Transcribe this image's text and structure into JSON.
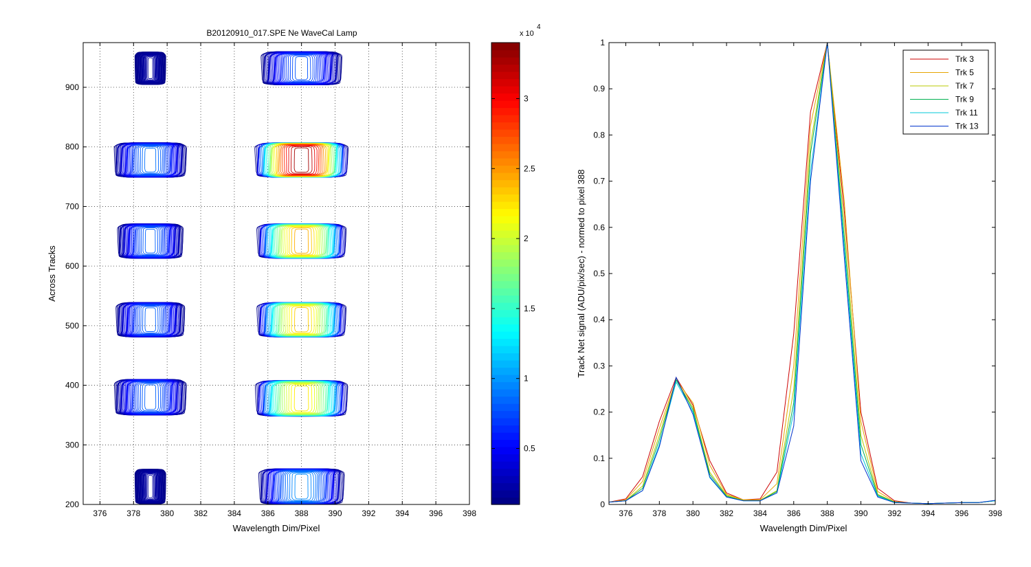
{
  "chart_data": [
    {
      "type": "contour",
      "title": "B20120910_017.SPE  Ne WaveCal Lamp",
      "xlabel": "Wavelength Dim/Pixel",
      "ylabel": "Across Tracks",
      "xlim": [
        375,
        398
      ],
      "ylim": [
        200,
        975
      ],
      "xticks": [
        376,
        378,
        380,
        382,
        384,
        386,
        388,
        390,
        392,
        394,
        396,
        398
      ],
      "yticks": [
        200,
        300,
        400,
        500,
        600,
        700,
        800,
        900
      ],
      "grid": true,
      "colormap": "jet",
      "colorbar": {
        "range": [
          1000,
          34000
        ],
        "ticks": [
          {
            "value": 5000,
            "label": "0.5"
          },
          {
            "value": 10000,
            "label": "1"
          },
          {
            "value": 15000,
            "label": "1.5"
          },
          {
            "value": 20000,
            "label": "2"
          },
          {
            "value": 25000,
            "label": "2.5"
          },
          {
            "value": 30000,
            "label": "3"
          }
        ],
        "multiplier_label": "x 10",
        "multiplier_exponent": "4"
      },
      "contour_levels": [
        1000,
        34000
      ],
      "blobs": [
        {
          "x_center": 379,
          "y_center": 230,
          "x_halfwidth": 1.4,
          "y_halfwidth": 30,
          "peak": 2200
        },
        {
          "x_center": 379,
          "y_center": 380,
          "x_halfwidth": 2.3,
          "y_halfwidth": 30,
          "peak": 8500
        },
        {
          "x_center": 379,
          "y_center": 510,
          "x_halfwidth": 2.2,
          "y_halfwidth": 29,
          "peak": 8500
        },
        {
          "x_center": 379,
          "y_center": 642,
          "x_halfwidth": 2.1,
          "y_halfwidth": 29,
          "peak": 8500
        },
        {
          "x_center": 379,
          "y_center": 778,
          "x_halfwidth": 2.3,
          "y_halfwidth": 29,
          "peak": 9000
        },
        {
          "x_center": 379,
          "y_center": 932,
          "x_halfwidth": 1.4,
          "y_halfwidth": 28,
          "peak": 2200
        },
        {
          "x_center": 388,
          "y_center": 230,
          "x_halfwidth": 2.7,
          "y_halfwidth": 30,
          "peak": 10000
        },
        {
          "x_center": 388,
          "y_center": 378,
          "x_halfwidth": 2.8,
          "y_halfwidth": 30,
          "peak": 23000
        },
        {
          "x_center": 388,
          "y_center": 510,
          "x_halfwidth": 2.7,
          "y_halfwidth": 29,
          "peak": 24000
        },
        {
          "x_center": 388,
          "y_center": 642,
          "x_halfwidth": 2.7,
          "y_halfwidth": 29,
          "peak": 25000
        },
        {
          "x_center": 388,
          "y_center": 778,
          "x_halfwidth": 2.8,
          "y_halfwidth": 29,
          "peak": 34000
        },
        {
          "x_center": 388,
          "y_center": 932,
          "x_halfwidth": 2.6,
          "y_halfwidth": 28,
          "peak": 8000
        }
      ]
    },
    {
      "type": "line",
      "xlabel": "Wavelength Dim/Pixel",
      "ylabel": "Track Net signal (ADU/pix/sec) - normed to pixel 388",
      "xlim": [
        375,
        398
      ],
      "ylim": [
        0,
        1
      ],
      "xticks": [
        376,
        378,
        380,
        382,
        384,
        386,
        388,
        390,
        392,
        394,
        396,
        398
      ],
      "yticks": [
        0,
        0.1,
        0.2,
        0.3,
        0.4,
        0.5,
        0.6,
        0.7,
        0.8,
        0.9,
        1
      ],
      "grid": false,
      "legend_position": "top-right",
      "x": [
        375,
        376,
        377,
        378,
        379,
        380,
        381,
        382,
        383,
        384,
        385,
        386,
        387,
        388,
        389,
        390,
        391,
        392,
        393,
        394,
        395,
        396,
        397,
        398
      ],
      "series": [
        {
          "name": "Trk 3",
          "color": "#cc0000",
          "values": [
            0.005,
            0.012,
            0.06,
            0.18,
            0.275,
            0.215,
            0.095,
            0.025,
            0.01,
            0.012,
            0.07,
            0.37,
            0.85,
            1.0,
            0.64,
            0.2,
            0.035,
            0.008,
            0.003,
            0.002,
            0.003,
            0.004,
            0.004,
            0.008
          ]
        },
        {
          "name": "Trk 5",
          "color": "#e6a400",
          "values": [
            0.005,
            0.01,
            0.05,
            0.165,
            0.27,
            0.22,
            0.085,
            0.022,
            0.01,
            0.01,
            0.045,
            0.3,
            0.82,
            1.0,
            0.66,
            0.18,
            0.028,
            0.006,
            0.003,
            0.002,
            0.003,
            0.004,
            0.004,
            0.008
          ]
        },
        {
          "name": "Trk 7",
          "color": "#b8c800",
          "values": [
            0.005,
            0.008,
            0.04,
            0.15,
            0.27,
            0.21,
            0.07,
            0.02,
            0.009,
            0.009,
            0.03,
            0.25,
            0.78,
            1.0,
            0.61,
            0.15,
            0.022,
            0.005,
            0.003,
            0.002,
            0.003,
            0.004,
            0.004,
            0.008
          ]
        },
        {
          "name": "Trk 9",
          "color": "#00b050",
          "values": [
            0.005,
            0.008,
            0.035,
            0.14,
            0.27,
            0.205,
            0.065,
            0.018,
            0.008,
            0.008,
            0.028,
            0.22,
            0.76,
            1.0,
            0.58,
            0.13,
            0.02,
            0.005,
            0.003,
            0.002,
            0.003,
            0.004,
            0.004,
            0.008
          ]
        },
        {
          "name": "Trk 11",
          "color": "#00c8d8",
          "values": [
            0.005,
            0.008,
            0.03,
            0.13,
            0.265,
            0.2,
            0.058,
            0.016,
            0.008,
            0.008,
            0.025,
            0.2,
            0.72,
            1.0,
            0.56,
            0.11,
            0.018,
            0.004,
            0.003,
            0.002,
            0.003,
            0.004,
            0.004,
            0.008
          ]
        },
        {
          "name": "Trk 13",
          "color": "#0033cc",
          "values": [
            0.005,
            0.008,
            0.03,
            0.125,
            0.275,
            0.195,
            0.06,
            0.016,
            0.008,
            0.008,
            0.025,
            0.17,
            0.7,
            1.0,
            0.54,
            0.095,
            0.016,
            0.004,
            0.003,
            0.002,
            0.003,
            0.004,
            0.004,
            0.009
          ]
        }
      ]
    }
  ]
}
